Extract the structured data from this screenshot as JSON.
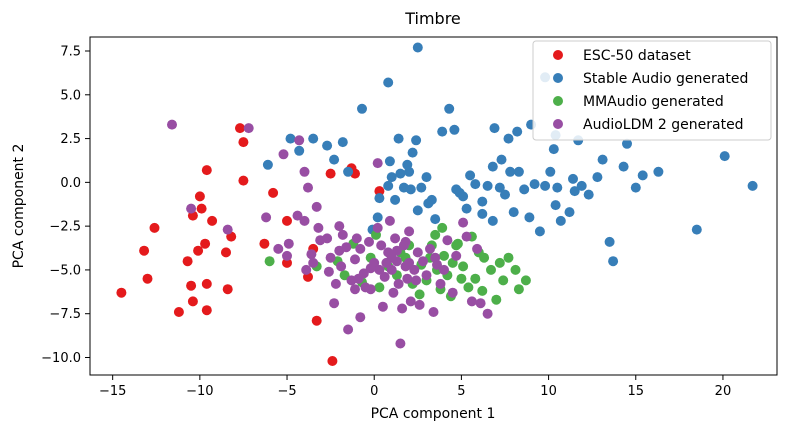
{
  "chart_data": {
    "type": "scatter",
    "title": "Timbre",
    "xlabel": "PCA component 1",
    "ylabel": "PCA component 2",
    "xlim": [
      -16.3,
      23.1
    ],
    "ylim": [
      -11.0,
      8.3
    ],
    "xticks": [
      -15,
      -10,
      -5,
      0,
      5,
      10,
      15,
      20
    ],
    "yticks": [
      -10.0,
      -7.5,
      -5.0,
      -2.5,
      0.0,
      2.5,
      5.0,
      7.5
    ],
    "xtick_labels": [
      "−15",
      "−10",
      "−5",
      "0",
      "5",
      "10",
      "15",
      "20"
    ],
    "ytick_labels": [
      "−10.0",
      "−7.5",
      "−5.0",
      "−2.5",
      "0.0",
      "2.5",
      "5.0",
      "7.5"
    ],
    "grid": false,
    "legend_position": "top-right",
    "series": [
      {
        "name": "ESC-50 dataset",
        "color": "#e41a1c",
        "points": [
          [
            -14.5,
            -6.3
          ],
          [
            -13.2,
            -3.9
          ],
          [
            -13.0,
            -5.5
          ],
          [
            -12.6,
            -2.6
          ],
          [
            -11.2,
            -7.4
          ],
          [
            -10.7,
            -4.5
          ],
          [
            -10.5,
            -5.9
          ],
          [
            -10.4,
            -6.8
          ],
          [
            -10.4,
            -1.9
          ],
          [
            -10.1,
            -3.9
          ],
          [
            -10.0,
            -0.8
          ],
          [
            -9.9,
            -1.5
          ],
          [
            -9.7,
            -3.5
          ],
          [
            -9.6,
            -7.3
          ],
          [
            -9.6,
            -5.8
          ],
          [
            -9.6,
            0.7
          ],
          [
            -9.3,
            -2.2
          ],
          [
            -8.5,
            -4.0
          ],
          [
            -8.4,
            -6.1
          ],
          [
            -8.2,
            -3.1
          ],
          [
            -7.7,
            3.1
          ],
          [
            -7.5,
            2.3
          ],
          [
            -7.5,
            0.1
          ],
          [
            -6.3,
            -3.5
          ],
          [
            -5.8,
            -0.6
          ],
          [
            -5.0,
            -2.2
          ],
          [
            -5.0,
            -4.6
          ],
          [
            -3.8,
            -5.4
          ],
          [
            -3.5,
            -3.8
          ],
          [
            -3.3,
            -7.9
          ],
          [
            -2.5,
            0.5
          ],
          [
            -2.4,
            -10.2
          ],
          [
            -1.3,
            0.8
          ],
          [
            -1.1,
            0.5
          ],
          [
            0.3,
            -0.5
          ]
        ]
      },
      {
        "name": "Stable Audio generated",
        "color": "#377eb8",
        "points": [
          [
            2.5,
            7.7
          ],
          [
            0.8,
            5.7
          ],
          [
            -0.7,
            4.2
          ],
          [
            -6.1,
            1.0
          ],
          [
            -4.8,
            2.5
          ],
          [
            -4.3,
            1.8
          ],
          [
            -3.5,
            2.5
          ],
          [
            -2.7,
            2.1
          ],
          [
            -2.3,
            1.3
          ],
          [
            -1.8,
            2.3
          ],
          [
            -1.5,
            0.6
          ],
          [
            0.9,
            1.2
          ],
          [
            0.8,
            -0.2
          ],
          [
            0.3,
            -0.9
          ],
          [
            1.4,
            2.5
          ],
          [
            1.0,
            0.3
          ],
          [
            1.5,
            0.5
          ],
          [
            2.0,
            0.6
          ],
          [
            1.7,
            -0.3
          ],
          [
            2.1,
            -0.4
          ],
          [
            1.9,
            1.0
          ],
          [
            2.2,
            1.7
          ],
          [
            2.4,
            2.4
          ],
          [
            3.0,
            0.3
          ],
          [
            2.7,
            -0.3
          ],
          [
            2.5,
            -1.6
          ],
          [
            3.1,
            -1.2
          ],
          [
            3.3,
            -1.0
          ],
          [
            3.5,
            -2.1
          ],
          [
            3.9,
            2.9
          ],
          [
            4.3,
            4.2
          ],
          [
            4.6,
            3.0
          ],
          [
            4.7,
            -0.4
          ],
          [
            4.9,
            -0.6
          ],
          [
            5.1,
            -0.8
          ],
          [
            5.5,
            0.4
          ],
          [
            5.3,
            -1.5
          ],
          [
            5.8,
            -0.1
          ],
          [
            6.2,
            -1.8
          ],
          [
            6.5,
            -0.2
          ],
          [
            6.8,
            -2.2
          ],
          [
            7.2,
            -0.3
          ],
          [
            7.5,
            -0.7
          ],
          [
            7.8,
            0.6
          ],
          [
            8.0,
            -1.7
          ],
          [
            8.3,
            0.6
          ],
          [
            8.6,
            -0.4
          ],
          [
            8.9,
            -2.0
          ],
          [
            9.2,
            -0.1
          ],
          [
            9.5,
            -2.8
          ],
          [
            9.8,
            -0.2
          ],
          [
            10.1,
            0.6
          ],
          [
            10.3,
            1.9
          ],
          [
            10.4,
            -1.3
          ],
          [
            10.5,
            -0.3
          ],
          [
            10.7,
            -2.2
          ],
          [
            11.2,
            -1.7
          ],
          [
            11.7,
            2.4
          ],
          [
            11.4,
            0.2
          ],
          [
            11.5,
            -0.5
          ],
          [
            11.9,
            -0.2
          ],
          [
            12.3,
            -0.7
          ],
          [
            12.8,
            0.3
          ],
          [
            13.1,
            1.3
          ],
          [
            13.5,
            -3.4
          ],
          [
            13.7,
            -4.5
          ],
          [
            14.5,
            2.2
          ],
          [
            14.3,
            0.9
          ],
          [
            15.0,
            -0.3
          ],
          [
            15.4,
            0.4
          ],
          [
            16.3,
            0.6
          ],
          [
            18.5,
            -2.7
          ],
          [
            20.1,
            1.5
          ],
          [
            21.7,
            -0.2
          ],
          [
            9.8,
            6.0
          ],
          [
            10.4,
            2.7
          ],
          [
            7.3,
            1.3
          ],
          [
            6.9,
            3.1
          ],
          [
            7.7,
            2.5
          ],
          [
            8.2,
            2.9
          ],
          [
            9.0,
            3.3
          ],
          [
            6.8,
            0.9
          ],
          [
            1.2,
            -1.0
          ],
          [
            0.2,
            -2.0
          ],
          [
            -0.1,
            -2.7
          ],
          [
            6.2,
            -1.1
          ]
        ]
      },
      {
        "name": "MMAudio generated",
        "color": "#4daf4a",
        "points": [
          [
            -6.0,
            -4.5
          ],
          [
            -3.3,
            -4.8
          ],
          [
            -1.7,
            -5.3
          ],
          [
            -0.7,
            -5.7
          ],
          [
            0.3,
            -6.0
          ],
          [
            0.8,
            -4.8
          ],
          [
            1.3,
            -5.3
          ],
          [
            1.8,
            -4.3
          ],
          [
            2.2,
            -5.8
          ],
          [
            2.6,
            -6.4
          ],
          [
            3.0,
            -5.6
          ],
          [
            3.2,
            -4.3
          ],
          [
            3.3,
            -3.6
          ],
          [
            3.5,
            -3.0
          ],
          [
            3.6,
            -5.0
          ],
          [
            3.8,
            -6.1
          ],
          [
            4.0,
            -4.2
          ],
          [
            4.2,
            -5.3
          ],
          [
            4.4,
            -6.5
          ],
          [
            4.5,
            -4.6
          ],
          [
            4.7,
            -3.6
          ],
          [
            5.0,
            -5.5
          ],
          [
            5.1,
            -4.8
          ],
          [
            5.4,
            -6.0
          ],
          [
            5.6,
            -3.1
          ],
          [
            5.8,
            -5.5
          ],
          [
            6.0,
            -4.0
          ],
          [
            6.2,
            -6.2
          ],
          [
            6.3,
            -4.3
          ],
          [
            6.7,
            -5.0
          ],
          [
            7.0,
            -6.7
          ],
          [
            7.2,
            -4.6
          ],
          [
            7.4,
            -5.6
          ],
          [
            7.7,
            -4.3
          ],
          [
            8.1,
            -5.0
          ],
          [
            8.3,
            -6.1
          ],
          [
            8.7,
            -5.6
          ],
          [
            1.5,
            -4.0
          ],
          [
            2.0,
            -3.6
          ],
          [
            2.7,
            -4.7
          ],
          [
            -0.2,
            -4.3
          ],
          [
            -1.2,
            -3.5
          ],
          [
            0.1,
            -3.0
          ],
          [
            -2.1,
            -4.5
          ],
          [
            3.9,
            -2.6
          ],
          [
            4.8,
            -3.5
          ]
        ]
      },
      {
        "name": "AudioLDM 2 generated",
        "color": "#984ea3",
        "points": [
          [
            -11.6,
            3.3
          ],
          [
            -10.5,
            -1.5
          ],
          [
            -8.4,
            -2.7
          ],
          [
            -7.2,
            3.1
          ],
          [
            -5.2,
            1.6
          ],
          [
            -4.3,
            2.4
          ],
          [
            -4.0,
            0.6
          ],
          [
            -3.8,
            -0.3
          ],
          [
            -3.3,
            -1.4
          ],
          [
            -6.2,
            -2.0
          ],
          [
            -5.5,
            -3.8
          ],
          [
            -5.0,
            -4.2
          ],
          [
            -4.9,
            -3.5
          ],
          [
            -4.4,
            -1.9
          ],
          [
            -4.0,
            -2.2
          ],
          [
            -3.6,
            -4.1
          ],
          [
            -3.2,
            -2.6
          ],
          [
            -3.1,
            -3.3
          ],
          [
            -2.7,
            -3.2
          ],
          [
            -2.5,
            -4.3
          ],
          [
            -2.3,
            -6.9
          ],
          [
            -2.2,
            -5.8
          ],
          [
            -2.0,
            -2.5
          ],
          [
            -1.9,
            -4.8
          ],
          [
            -1.6,
            -3.7
          ],
          [
            -1.5,
            -8.4
          ],
          [
            -1.3,
            -5.6
          ],
          [
            -1.1,
            -4.4
          ],
          [
            -1.0,
            -3.2
          ],
          [
            -0.8,
            -3.8
          ],
          [
            -0.8,
            -7.7
          ],
          [
            -0.6,
            -5.2
          ],
          [
            -0.5,
            -6.0
          ],
          [
            -0.3,
            -3.4
          ],
          [
            -0.2,
            -6.1
          ],
          [
            0.0,
            -4.6
          ],
          [
            0.2,
            -2.6
          ],
          [
            0.3,
            -5.0
          ],
          [
            0.4,
            -3.6
          ],
          [
            0.5,
            -7.1
          ],
          [
            0.6,
            -5.4
          ],
          [
            0.8,
            -4.0
          ],
          [
            0.9,
            -2.2
          ],
          [
            1.0,
            -5.0
          ],
          [
            1.1,
            -6.3
          ],
          [
            1.2,
            -3.2
          ],
          [
            1.3,
            -4.5
          ],
          [
            1.4,
            -5.8
          ],
          [
            1.5,
            -9.2
          ],
          [
            1.6,
            -7.2
          ],
          [
            1.7,
            -3.6
          ],
          [
            1.8,
            -4.8
          ],
          [
            1.9,
            -5.5
          ],
          [
            2.0,
            -2.8
          ],
          [
            2.1,
            -6.8
          ],
          [
            2.3,
            -5.0
          ],
          [
            2.5,
            -4.0
          ],
          [
            2.6,
            -7.0
          ],
          [
            2.8,
            -4.5
          ],
          [
            3.0,
            -5.3
          ],
          [
            3.2,
            -3.8
          ],
          [
            3.4,
            -7.4
          ],
          [
            3.6,
            -4.7
          ],
          [
            3.8,
            -5.8
          ],
          [
            4.0,
            -5.0
          ],
          [
            4.2,
            -3.3
          ],
          [
            4.5,
            -6.3
          ],
          [
            4.7,
            -4.2
          ],
          [
            5.1,
            -2.3
          ],
          [
            5.3,
            -3.1
          ],
          [
            5.6,
            -6.8
          ],
          [
            5.9,
            -3.8
          ],
          [
            6.1,
            -6.9
          ],
          [
            6.5,
            -7.5
          ],
          [
            -1.1,
            -6.1
          ],
          [
            -0.9,
            -5.5
          ],
          [
            0.2,
            1.1
          ],
          [
            1.0,
            -4.3
          ],
          [
            2.0,
            -4.6
          ],
          [
            -2.0,
            -3.9
          ],
          [
            -3.9,
            -5.0
          ],
          [
            1.8,
            -3.4
          ],
          [
            3.5,
            -4.3
          ],
          [
            -1.8,
            -3.0
          ],
          [
            2.4,
            -5.6
          ],
          [
            0.7,
            -4.6
          ],
          [
            -0.2,
            -4.9
          ],
          [
            1.3,
            -3.9
          ],
          [
            -2.6,
            -5.1
          ],
          [
            -3.5,
            -4.6
          ]
        ]
      }
    ]
  }
}
